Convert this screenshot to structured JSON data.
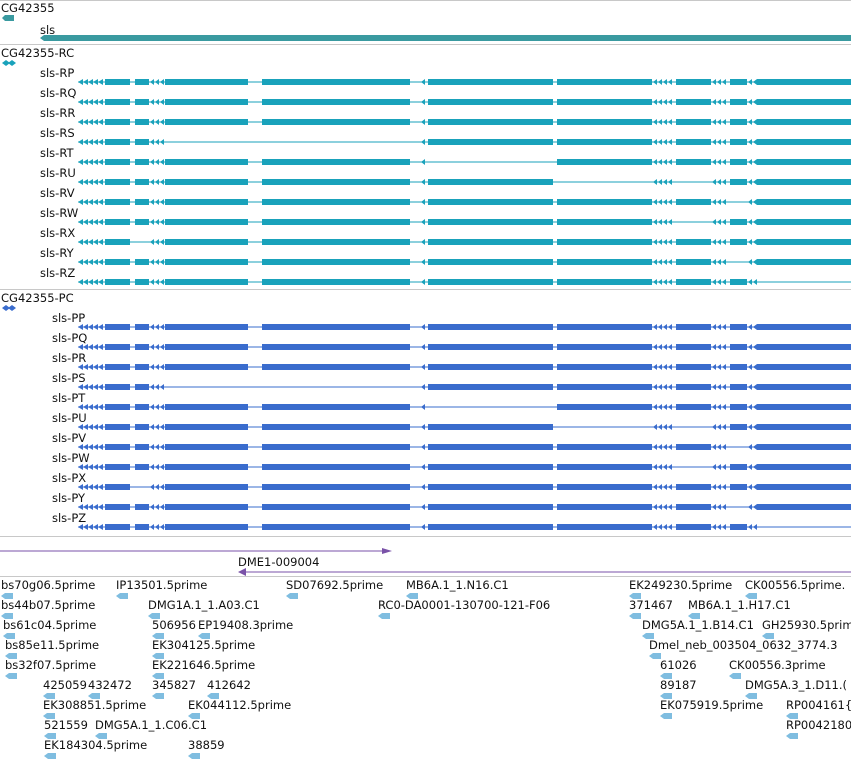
{
  "colors": {
    "gene": "#3a9aa0",
    "rc": "#19a2bb",
    "pc": "#3a6ccd",
    "region": "#7a52a8",
    "est": "#7fbde0",
    "separator": "#c8c8c8"
  },
  "gene_track": {
    "title": "CG42355",
    "gene_name": "sls"
  },
  "transcripts": {
    "title": "CG42355-RC",
    "items": [
      "sls-RP",
      "sls-RQ",
      "sls-RR",
      "sls-RS",
      "sls-RT",
      "sls-RU",
      "sls-RV",
      "sls-RW",
      "sls-RX",
      "sls-RY",
      "sls-RZ"
    ]
  },
  "proteins": {
    "title": "CG42355-PC",
    "items": [
      "sls-PP",
      "sls-PQ",
      "sls-PR",
      "sls-PS",
      "sls-PT",
      "sls-PU",
      "sls-PV",
      "sls-PW",
      "sls-PX",
      "sls-PY",
      "sls-PZ"
    ]
  },
  "region": {
    "name": "DME1-009004"
  },
  "ests": [
    "bs70g06.5prime",
    "IP13501.5prime",
    "SD07692.5prime",
    "MB6A.1_1.N16.C1",
    "EK249230.5prime",
    "CK00556.5prime.",
    "bs44b07.5prime",
    "DMG1A.1_1.A03.C1",
    "RC0-DA0001-130700-121-F06",
    "371467",
    "MB6A.1_1.H17.C1",
    "bs61c04.5prime",
    "506956",
    "EP19408.3prime",
    "DMG5A.1_1.B14.C1",
    "GH25930.5prim",
    "bs85e11.5prime",
    "EK304125.5prime",
    "Dmel_neb_003504_0632_3774.3",
    "bs32f07.5prime",
    "EK221646.5prime",
    "61026",
    "CK00556.3prime",
    "425059",
    "432472",
    "345827",
    "412642",
    "89187",
    "DMG5A.3_1.D11.(",
    "EK308851.5prime",
    "EK044112.5prime",
    "EK075919.5prime",
    "RP004161{",
    "521559",
    "DMG5A.1_1.C06.C1",
    "RP0042180",
    "EK184304.5prime",
    "38859"
  ]
}
